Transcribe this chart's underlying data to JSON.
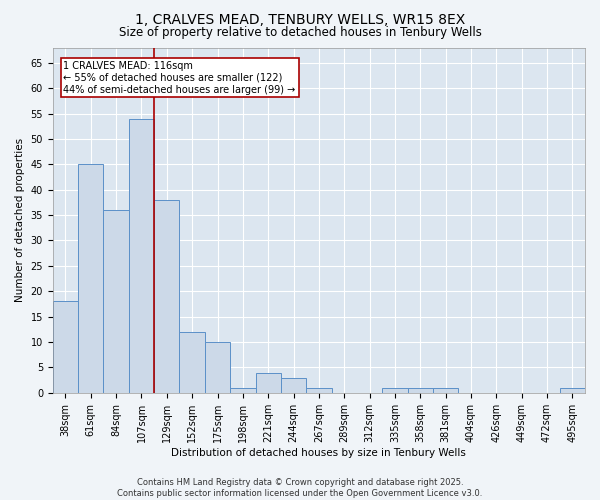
{
  "title": "1, CRALVES MEAD, TENBURY WELLS, WR15 8EX",
  "subtitle": "Size of property relative to detached houses in Tenbury Wells",
  "xlabel": "Distribution of detached houses by size in Tenbury Wells",
  "ylabel": "Number of detached properties",
  "bar_color": "#ccd9e8",
  "bar_edge_color": "#5b90c8",
  "background_color": "#dce6f0",
  "grid_color": "#ffffff",
  "categories": [
    "38sqm",
    "61sqm",
    "84sqm",
    "107sqm",
    "129sqm",
    "152sqm",
    "175sqm",
    "198sqm",
    "221sqm",
    "244sqm",
    "267sqm",
    "289sqm",
    "312sqm",
    "335sqm",
    "358sqm",
    "381sqm",
    "404sqm",
    "426sqm",
    "449sqm",
    "472sqm",
    "495sqm"
  ],
  "values": [
    18,
    45,
    36,
    54,
    38,
    12,
    10,
    1,
    4,
    3,
    1,
    0,
    0,
    1,
    1,
    1,
    0,
    0,
    0,
    0,
    1
  ],
  "ylim": [
    0,
    68
  ],
  "yticks": [
    0,
    5,
    10,
    15,
    20,
    25,
    30,
    35,
    40,
    45,
    50,
    55,
    60,
    65
  ],
  "annotation_text": "1 CRALVES MEAD: 116sqm\n← 55% of detached houses are smaller (122)\n44% of semi-detached houses are larger (99) →",
  "red_line_color": "#aa0000",
  "red_line_x": 3.5,
  "footer_text": "Contains HM Land Registry data © Crown copyright and database right 2025.\nContains public sector information licensed under the Open Government Licence v3.0.",
  "title_fontsize": 10,
  "subtitle_fontsize": 8.5,
  "axis_label_fontsize": 7.5,
  "tick_fontsize": 7,
  "annotation_fontsize": 7,
  "footer_fontsize": 6
}
